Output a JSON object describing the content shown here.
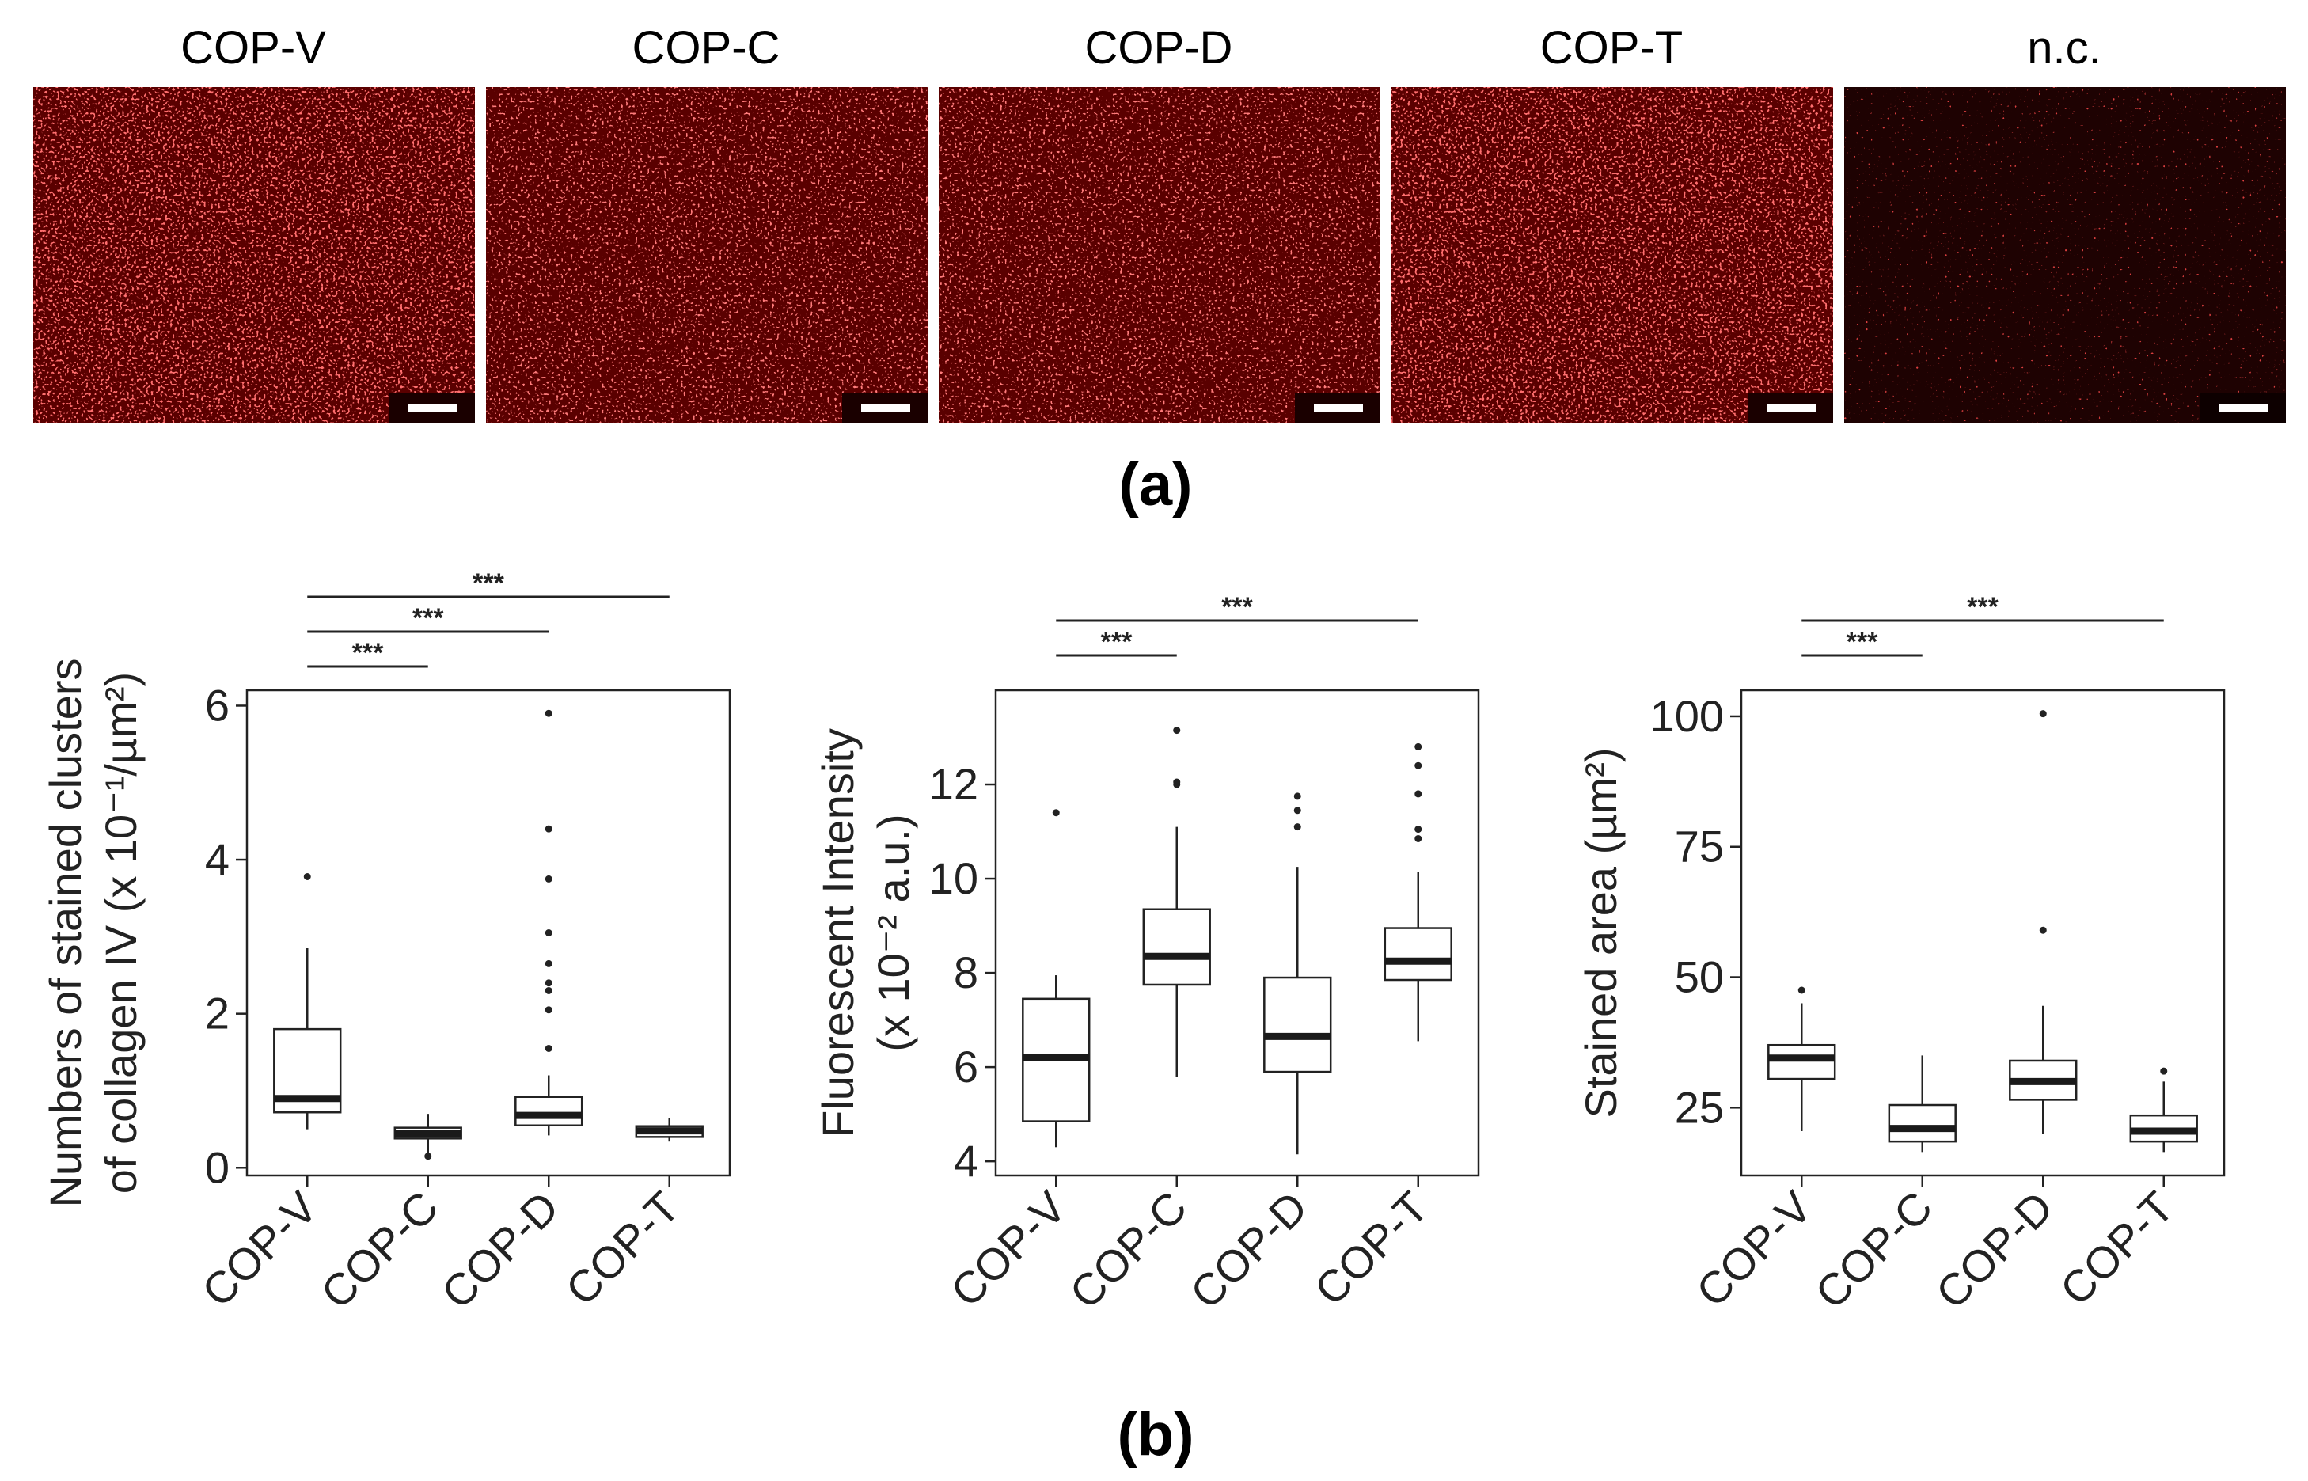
{
  "figure": {
    "label_a": "(a)",
    "label_b": "(b)"
  },
  "micrographs": [
    {
      "label": "COP-V",
      "stain": "strong"
    },
    {
      "label": "COP-C",
      "stain": "medium"
    },
    {
      "label": "COP-D",
      "stain": "medium"
    },
    {
      "label": "COP-T",
      "stain": "strong"
    },
    {
      "label": "n.c.",
      "stain": "none"
    }
  ],
  "colors": {
    "stain": "#ff2a2a",
    "background": "#5a0000",
    "nc_background": "#1e0202",
    "scalebar": "#ffffff"
  },
  "chart_data": [
    {
      "type": "box",
      "categories": [
        "COP-V",
        "COP-C",
        "COP-D",
        "COP-T"
      ],
      "ylabel_lines": [
        "Numbers of stained clusters",
        "of collagen IV (x 10⁻¹/µm²)"
      ],
      "ylim": [
        -0.1,
        6.2
      ],
      "yticks": [
        0,
        2,
        4,
        6
      ],
      "ytick_labels": [
        "0",
        "2",
        "4",
        "6"
      ],
      "boxes": [
        {
          "q1": 0.72,
          "median": 0.9,
          "q3": 1.8,
          "whisker_low": 0.5,
          "whisker_high": 2.85,
          "outliers": [
            3.78
          ]
        },
        {
          "q1": 0.38,
          "median": 0.45,
          "q3": 0.52,
          "whisker_low": 0.18,
          "whisker_high": 0.7,
          "outliers": [
            0.15
          ]
        },
        {
          "q1": 0.55,
          "median": 0.68,
          "q3": 0.92,
          "whisker_low": 0.42,
          "whisker_high": 1.2,
          "outliers": [
            1.55,
            2.05,
            2.3,
            2.4,
            2.65,
            3.05,
            3.75,
            4.4,
            5.9
          ]
        },
        {
          "q1": 0.4,
          "median": 0.48,
          "q3": 0.54,
          "whisker_low": 0.34,
          "whisker_high": 0.64,
          "outliers": []
        }
      ],
      "significance": [
        {
          "from": 0,
          "to": 1,
          "label": "***"
        },
        {
          "from": 0,
          "to": 2,
          "label": "***"
        },
        {
          "from": 0,
          "to": 3,
          "label": "***"
        }
      ]
    },
    {
      "type": "box",
      "categories": [
        "COP-V",
        "COP-C",
        "COP-D",
        "COP-T"
      ],
      "ylabel_lines": [
        "Fluorescent Intensity",
        "(x 10⁻² a.u.)"
      ],
      "ylim": [
        3.7,
        14.0
      ],
      "yticks": [
        4,
        6,
        8,
        10,
        12
      ],
      "ytick_labels": [
        "4",
        "6",
        "8",
        "10",
        "12"
      ],
      "boxes": [
        {
          "q1": 4.85,
          "median": 6.2,
          "q3": 7.45,
          "whisker_low": 4.3,
          "whisker_high": 7.95,
          "outliers": [
            11.4
          ]
        },
        {
          "q1": 7.75,
          "median": 8.35,
          "q3": 9.35,
          "whisker_low": 5.8,
          "whisker_high": 11.1,
          "outliers": [
            12.0,
            12.05,
            13.15
          ]
        },
        {
          "q1": 5.9,
          "median": 6.65,
          "q3": 7.9,
          "whisker_low": 4.15,
          "whisker_high": 10.25,
          "outliers": [
            11.1,
            11.45,
            11.75
          ]
        },
        {
          "q1": 7.85,
          "median": 8.25,
          "q3": 8.95,
          "whisker_low": 6.55,
          "whisker_high": 10.15,
          "outliers": [
            10.85,
            11.05,
            11.8,
            12.4,
            12.8
          ]
        }
      ],
      "significance": [
        {
          "from": 0,
          "to": 1,
          "label": "***"
        },
        {
          "from": 0,
          "to": 3,
          "label": "***"
        }
      ]
    },
    {
      "type": "box",
      "categories": [
        "COP-V",
        "COP-C",
        "COP-D",
        "COP-T"
      ],
      "ylabel_lines": [
        "Stained area (µm²)"
      ],
      "ylim": [
        12,
        105
      ],
      "yticks": [
        25,
        50,
        75,
        100
      ],
      "ytick_labels": [
        "25",
        "50",
        "75",
        "100"
      ],
      "boxes": [
        {
          "q1": 30.5,
          "median": 34.5,
          "q3": 37,
          "whisker_low": 20.5,
          "whisker_high": 45,
          "outliers": [
            47.5
          ]
        },
        {
          "q1": 18.5,
          "median": 21,
          "q3": 25.5,
          "whisker_low": 16.5,
          "whisker_high": 35,
          "outliers": []
        },
        {
          "q1": 26.5,
          "median": 30,
          "q3": 34,
          "whisker_low": 20,
          "whisker_high": 44.5,
          "outliers": [
            59,
            100.5
          ]
        },
        {
          "q1": 18.5,
          "median": 20.5,
          "q3": 23.5,
          "whisker_low": 16.5,
          "whisker_high": 30,
          "outliers": [
            32
          ]
        }
      ],
      "significance": [
        {
          "from": 0,
          "to": 1,
          "label": "***"
        },
        {
          "from": 0,
          "to": 3,
          "label": "***"
        }
      ]
    }
  ]
}
